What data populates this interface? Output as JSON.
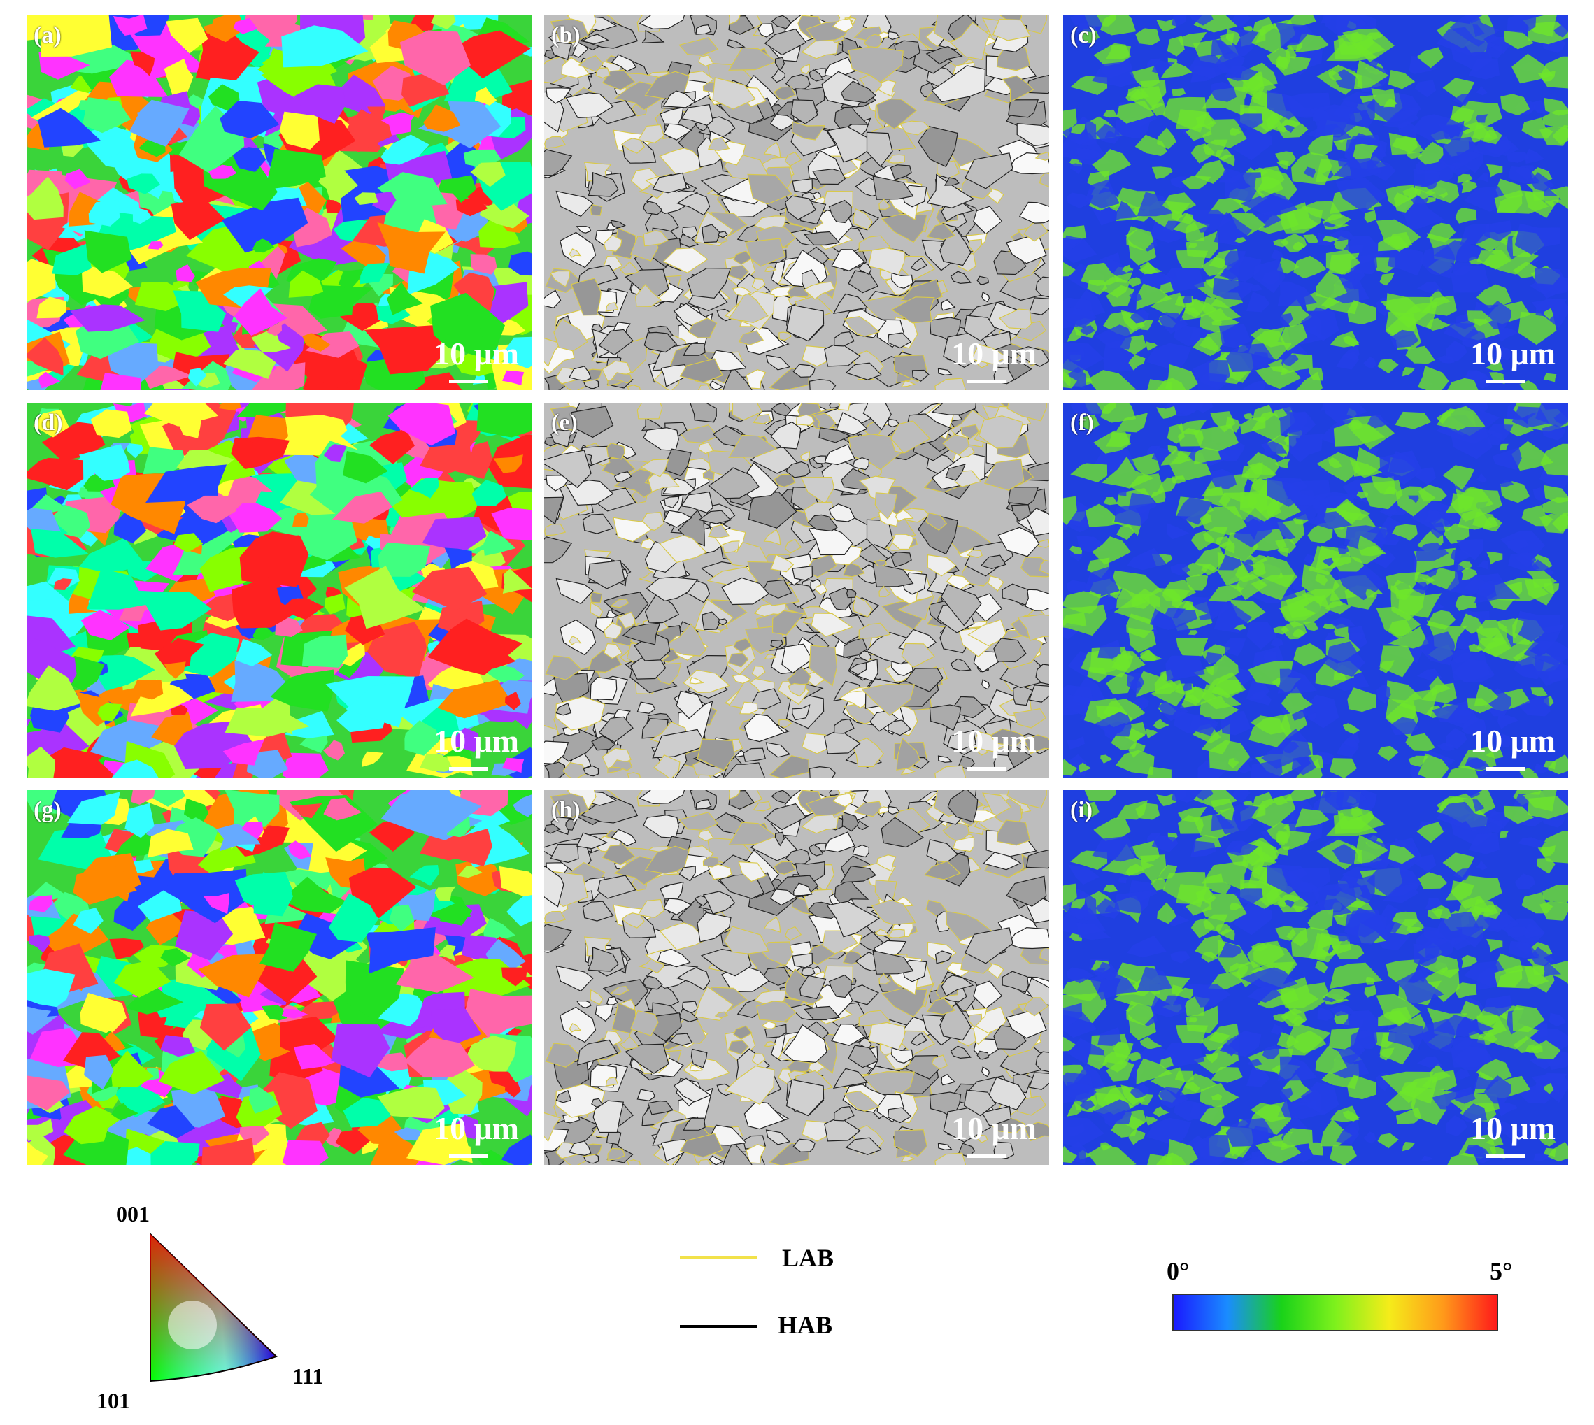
{
  "panels": [
    {
      "label": "(a)",
      "scale": "10 μm",
      "kind": "ipf"
    },
    {
      "label": "(b)",
      "scale": "10 μm",
      "kind": "boundary"
    },
    {
      "label": "(c)",
      "scale": "10 μm",
      "kind": "kam"
    },
    {
      "label": "(d)",
      "scale": "10 μm",
      "kind": "ipf"
    },
    {
      "label": "(e)",
      "scale": "10 μm",
      "kind": "boundary"
    },
    {
      "label": "(f)",
      "scale": "10 μm",
      "kind": "kam"
    },
    {
      "label": "(g)",
      "scale": "10 μm",
      "kind": "ipf"
    },
    {
      "label": "(h)",
      "scale": "10 μm",
      "kind": "boundary"
    },
    {
      "label": "(i)",
      "scale": "10 μm",
      "kind": "kam"
    }
  ],
  "ipf_legend": {
    "top": "001",
    "left": "101",
    "right": "111"
  },
  "boundary_legend": {
    "lab": "LAB",
    "hab": "HAB",
    "lab_color": "#f2e24a",
    "hab_color": "#000000"
  },
  "colorbar": {
    "min": "0°",
    "max": "5°",
    "colors": [
      "#1a1aff",
      "#1a8cff",
      "#19d219",
      "#7ef11c",
      "#f5ec1a",
      "#ff9a1a",
      "#ff1a1a"
    ]
  }
}
